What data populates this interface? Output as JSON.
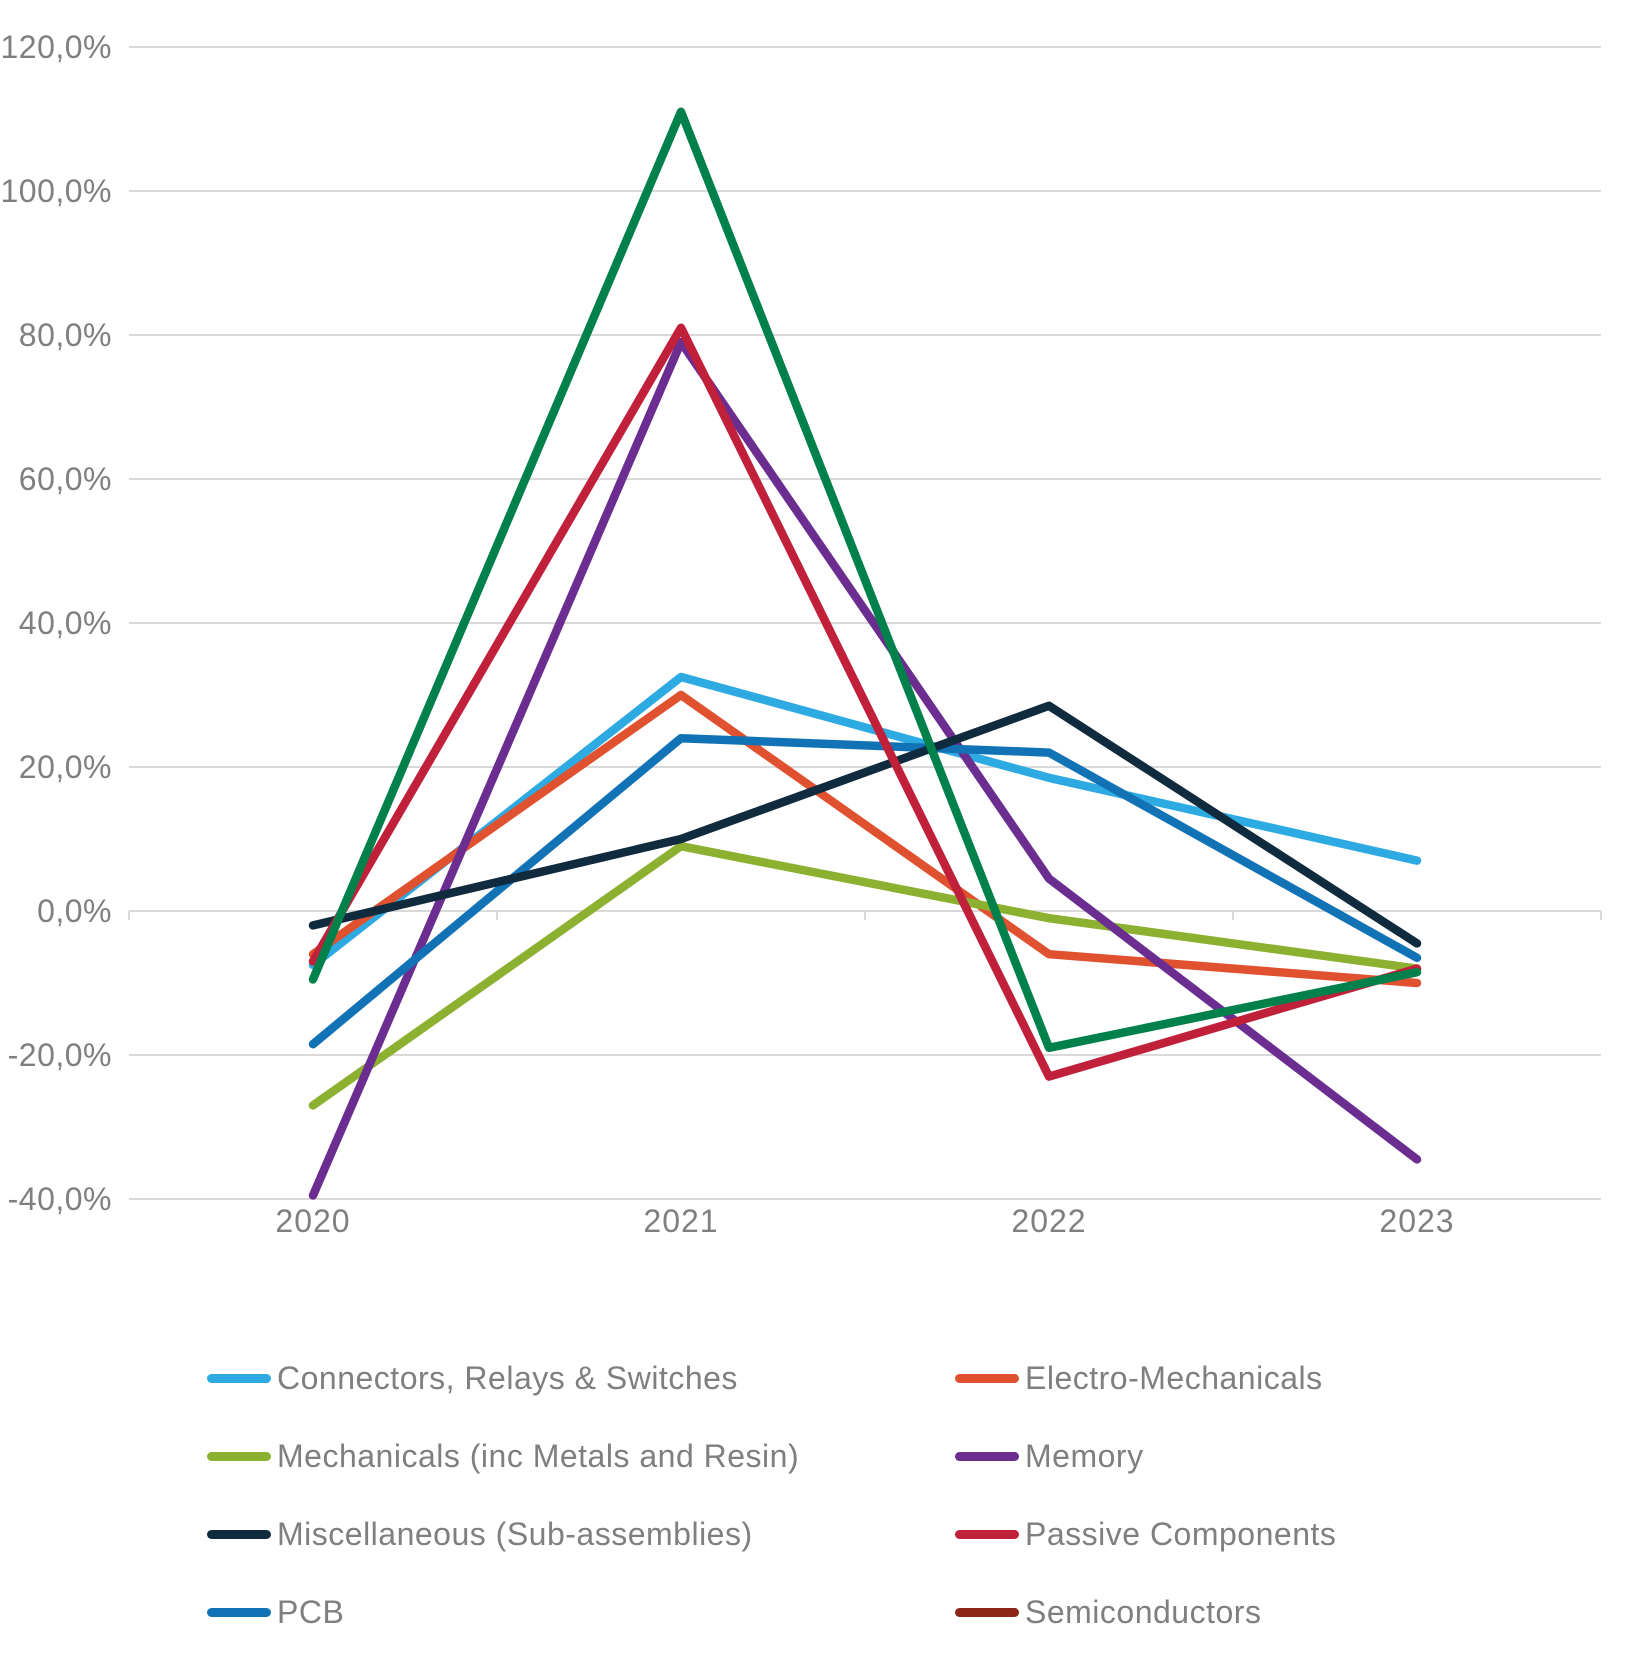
{
  "chart_data": {
    "type": "line",
    "title": "",
    "x_categories": [
      "2020",
      "2021",
      "2022",
      "2023"
    ],
    "y_axis": {
      "min": -40,
      "max": 120,
      "step": 20,
      "tick_labels": [
        "120,0%",
        "100,0%",
        "80,0%",
        "60,0%",
        "40,0%",
        "20,0%",
        "0,0%",
        "-20,0%",
        "-40,0%"
      ],
      "format": "percent with comma decimal separator"
    },
    "grid": "horizontal gridlines on, ticks on zero axis",
    "legend_position": "bottom, two columns",
    "series": [
      {
        "name": "Connectors, Relays & Switches",
        "color": "#2EAAE2",
        "values": [
          -7.5,
          32.5,
          18.5,
          7
        ]
      },
      {
        "name": "Electro-Mechanicals",
        "color": "#E0512F",
        "values": [
          -6,
          30,
          -6,
          -10
        ]
      },
      {
        "name": "Mechanicals (inc Metals and Resin)",
        "color": "#8CB02F",
        "values": [
          -27,
          9,
          -1,
          -8
        ]
      },
      {
        "name": "Memory",
        "color": "#6C2D91",
        "values": [
          -39.5,
          79,
          4.5,
          -34.5
        ]
      },
      {
        "name": "PCB",
        "color": "#1173B5",
        "values": [
          -18.5,
          24,
          22,
          -6.5
        ]
      },
      {
        "name": "Miscellaneous (Sub-assemblies)",
        "color": "#102A3E",
        "values": [
          -2,
          10,
          28.5,
          -4.5
        ]
      },
      {
        "name": "Passive Components",
        "color": "#C1203B",
        "values": [
          -7,
          81,
          -23,
          -8
        ]
      },
      {
        "name": "Semiconductors",
        "color": "#00804A",
        "legend_color": "#8B2517",
        "values": [
          -9.5,
          111,
          -19,
          -8.5
        ]
      }
    ],
    "legend": {
      "columns": [
        [
          "Connectors, Relays & Switches",
          "Mechanicals (inc Metals and Resin)",
          "Miscellaneous (Sub-assemblies)",
          "PCB"
        ],
        [
          "Electro-Mechanicals",
          "Memory",
          "Passive Components",
          "Semiconductors"
        ]
      ]
    }
  },
  "colors": {
    "background": "#FFFFFF",
    "gridline": "#D9D9D9",
    "axis_text": "#7F7F7F",
    "legend_text": "#7F7F7F"
  }
}
